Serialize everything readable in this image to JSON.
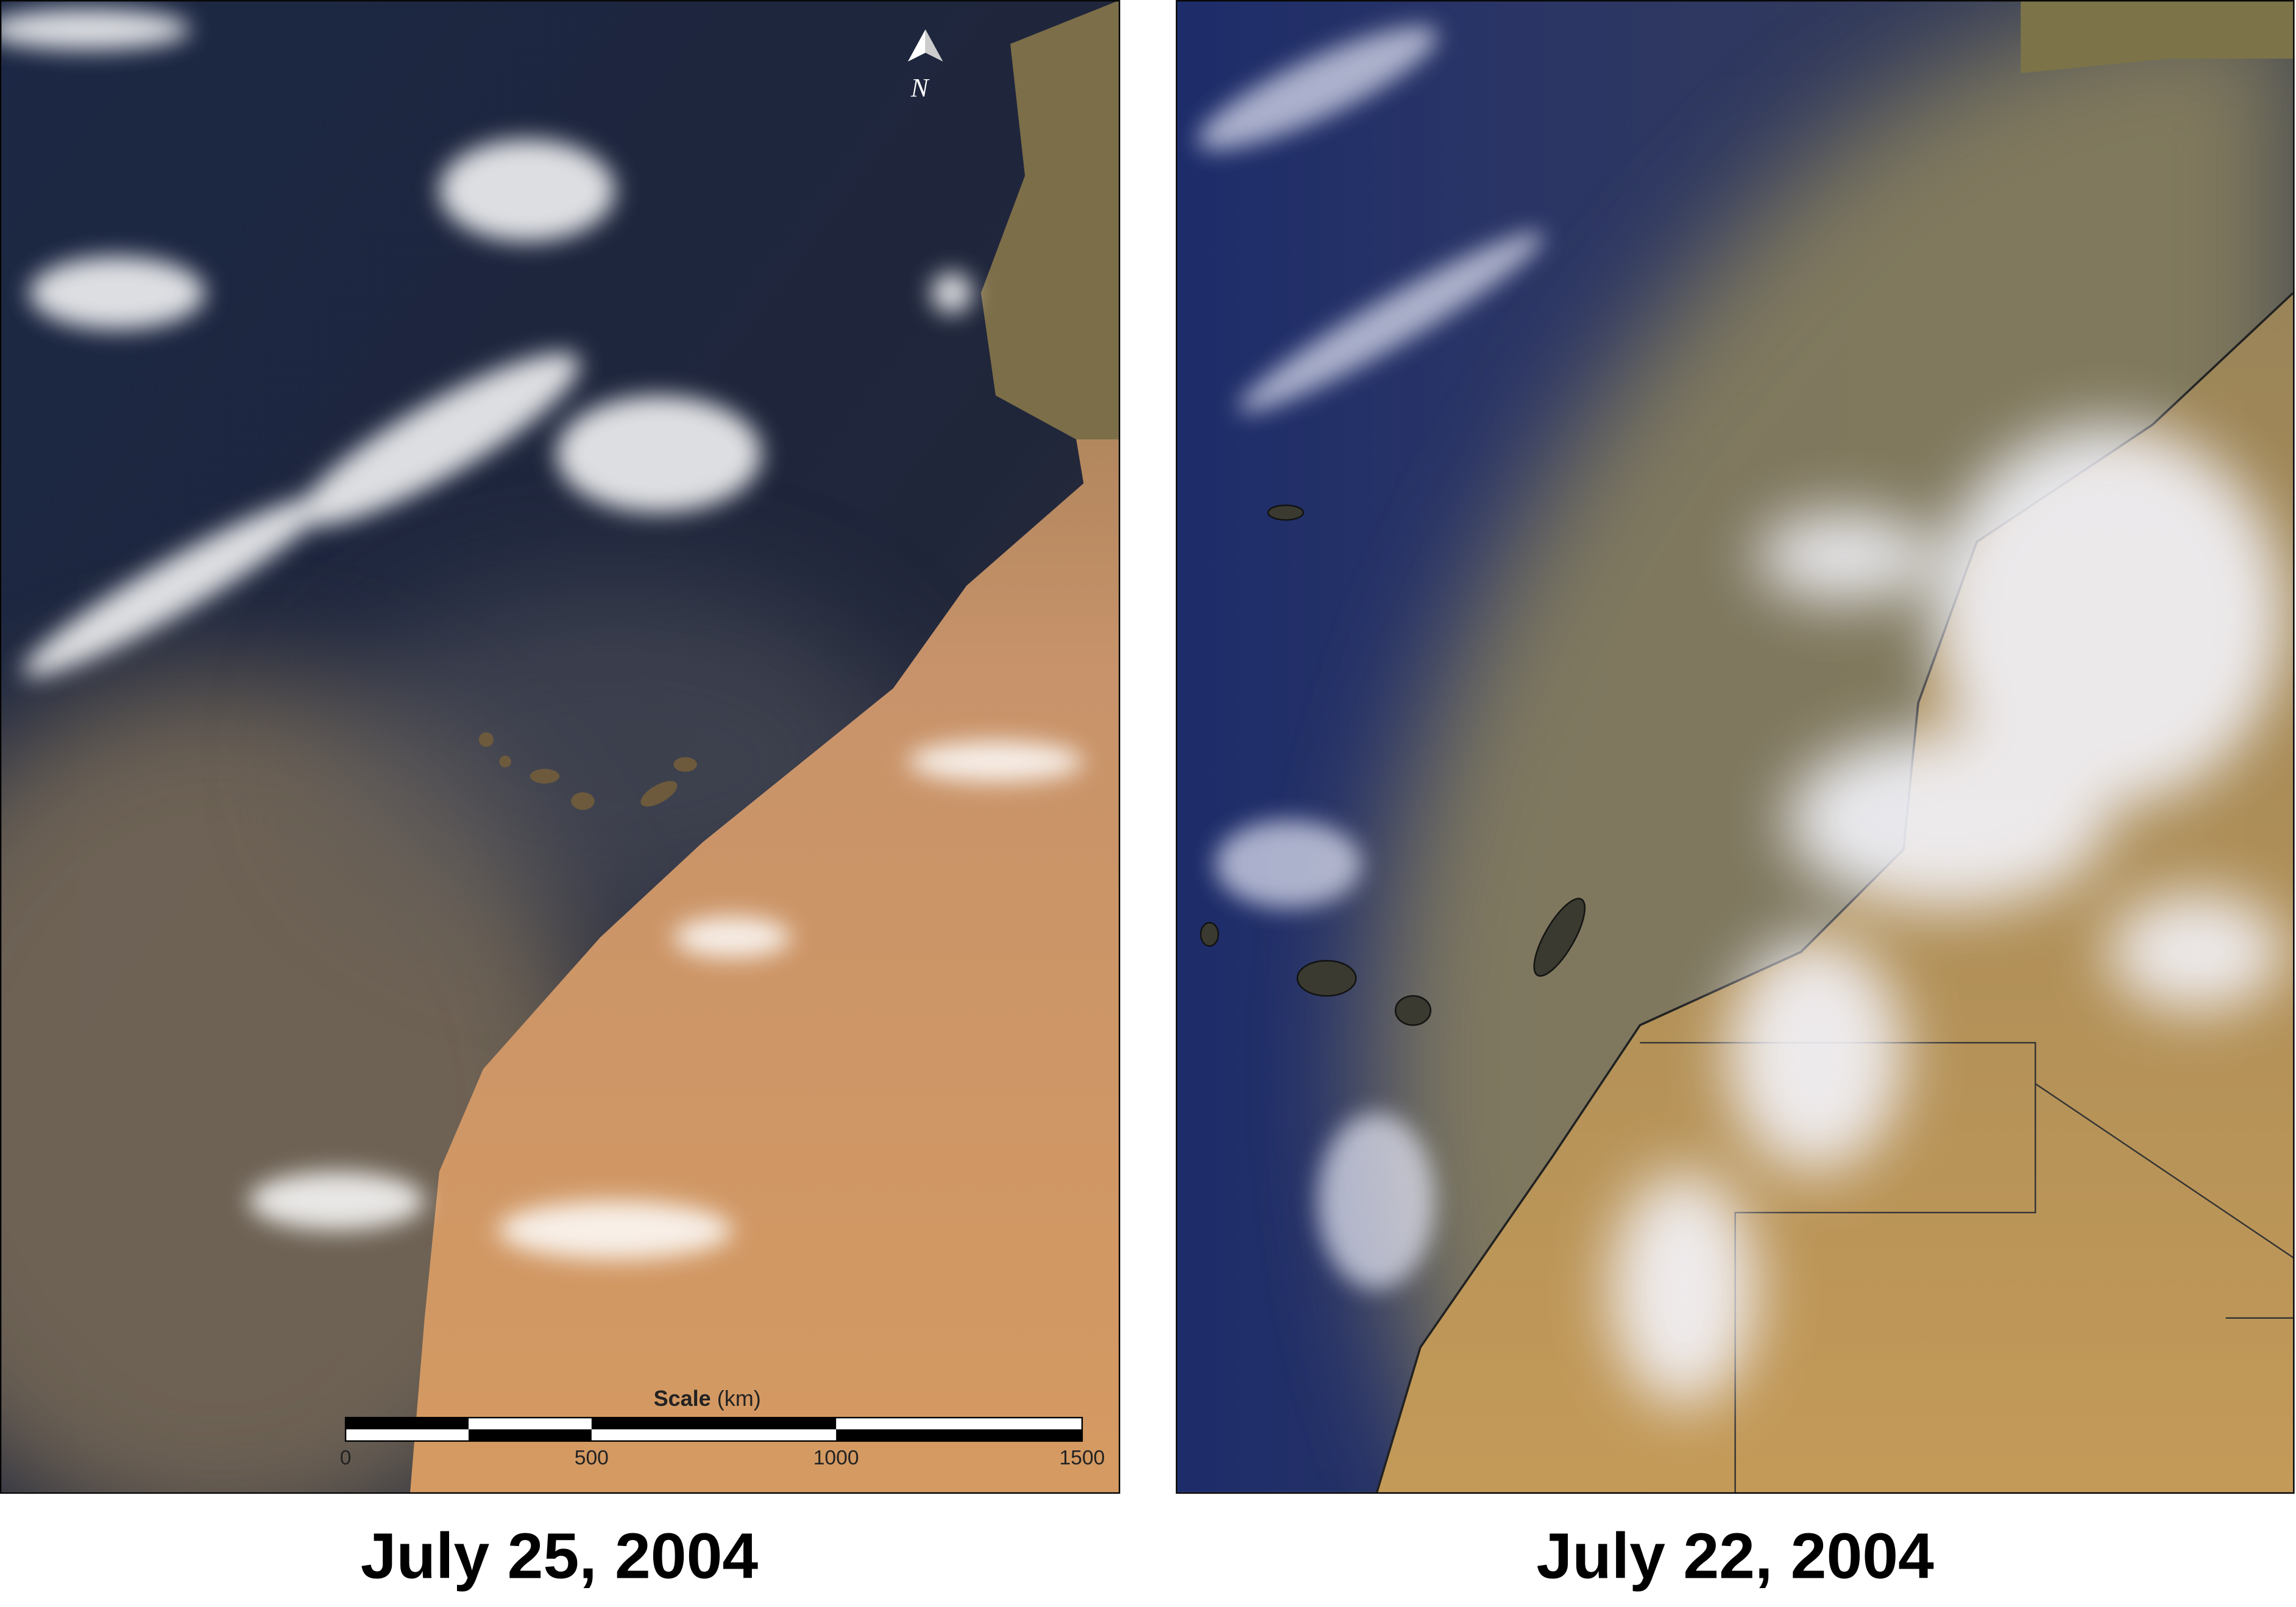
{
  "panels": [
    {
      "caption": "July 25, 2004",
      "north_label": "N",
      "scale": {
        "title": "Scale",
        "unit": "(km)",
        "labels": [
          "0",
          "500",
          "1000",
          "1500"
        ]
      }
    },
    {
      "caption": "July 22, 2004"
    }
  ]
}
